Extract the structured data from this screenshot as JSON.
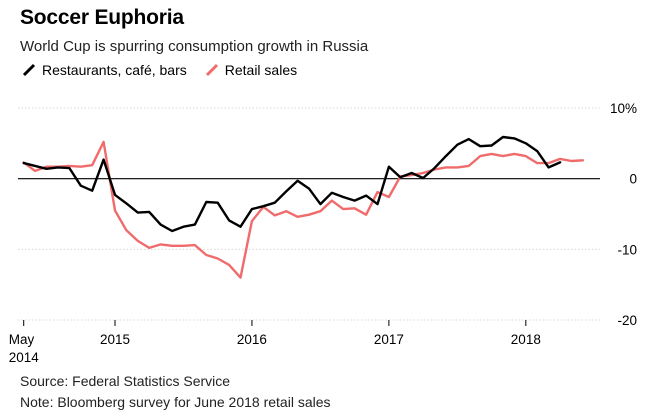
{
  "chart_data": {
    "type": "line",
    "title": "Soccer Euphoria",
    "subtitle": "World Cup is spurring consumption growth in Russia",
    "x_ticks": [
      {
        "value": 0,
        "label": "May",
        "sublabel": "2014"
      },
      {
        "value": 8,
        "label": "2015",
        "sublabel": ""
      },
      {
        "value": 20,
        "label": "2016",
        "sublabel": ""
      },
      {
        "value": 32,
        "label": "2017",
        "sublabel": ""
      },
      {
        "value": 44,
        "label": "2018",
        "sublabel": ""
      }
    ],
    "y_ticks": [
      {
        "value": 10,
        "label": "10%"
      },
      {
        "value": 0,
        "label": "0"
      },
      {
        "value": -10,
        "label": "-10"
      },
      {
        "value": -20,
        "label": "-20"
      }
    ],
    "xlim": [
      -0.5,
      50.5
    ],
    "ylim": [
      -20,
      10
    ],
    "legend_position": "top-left",
    "series": [
      {
        "name": "Restaurants, café, bars",
        "color": "#000000",
        "x": [
          0,
          1,
          2,
          3,
          4,
          5,
          6,
          7,
          8,
          9,
          10,
          11,
          12,
          13,
          14,
          15,
          16,
          17,
          18,
          19,
          20,
          21,
          22,
          23,
          24,
          25,
          26,
          27,
          28,
          29,
          30,
          31,
          32,
          33,
          34,
          35,
          36,
          37,
          38,
          39,
          40,
          41,
          42,
          43,
          44,
          45,
          46,
          47
        ],
        "values": [
          2.2,
          1.8,
          1.4,
          1.6,
          1.5,
          -1.0,
          -1.7,
          2.7,
          -2.3,
          -3.5,
          -4.8,
          -4.7,
          -6.5,
          -7.4,
          -6.8,
          -6.5,
          -3.3,
          -3.4,
          -5.9,
          -6.8,
          -4.3,
          -3.9,
          -3.4,
          -1.8,
          -0.3,
          -1.4,
          -3.6,
          -2.0,
          -2.6,
          -3.1,
          -2.4,
          -3.6,
          1.7,
          0.2,
          0.8,
          0.1,
          1.5,
          3.2,
          4.8,
          5.6,
          4.6,
          4.7,
          5.9,
          5.7,
          5.0,
          3.9,
          1.6,
          2.3
        ]
      },
      {
        "name": "Retail sales",
        "color": "#f06b6b",
        "x": [
          0,
          1,
          2,
          3,
          4,
          5,
          6,
          7,
          8,
          9,
          10,
          11,
          12,
          13,
          14,
          15,
          16,
          17,
          18,
          19,
          20,
          21,
          22,
          23,
          24,
          25,
          26,
          27,
          28,
          29,
          30,
          31,
          32,
          33,
          34,
          35,
          36,
          37,
          38,
          39,
          40,
          41,
          42,
          43,
          44,
          45,
          46,
          47,
          48,
          49
        ],
        "values": [
          2.3,
          1.1,
          1.7,
          1.7,
          1.8,
          1.7,
          1.9,
          5.2,
          -4.5,
          -7.3,
          -8.8,
          -9.8,
          -9.3,
          -9.5,
          -9.5,
          -9.4,
          -10.8,
          -11.3,
          -12.2,
          -14.0,
          -6.0,
          -4.0,
          -5.2,
          -4.6,
          -5.4,
          -5.1,
          -4.6,
          -3.1,
          -4.3,
          -4.2,
          -5.1,
          -1.9,
          -2.6,
          0.3,
          0.5,
          0.8,
          1.3,
          1.6,
          1.6,
          1.8,
          3.2,
          3.5,
          3.2,
          3.5,
          3.2,
          2.2,
          2.2,
          2.8,
          2.5,
          2.6
        ]
      }
    ]
  },
  "footer": {
    "source": "Source: Federal Statistics Service",
    "note": "Note: Bloomberg survey for June 2018 retail sales"
  }
}
